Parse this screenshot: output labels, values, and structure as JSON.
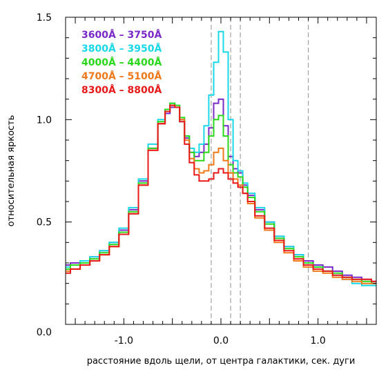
{
  "chart_data": {
    "type": "line",
    "xlabel": "расстояние вдоль щели, от центра галактики, сек. дуги",
    "ylabel": "относительная яркость",
    "xlim": [
      -1.6,
      1.6
    ],
    "ylim": [
      0.0,
      1.5
    ],
    "grid": false,
    "legend_position": "top-left",
    "x_ticks": [
      -1.0,
      0.0,
      1.0
    ],
    "x_tick_labels": [
      "-1.0",
      "0.0",
      "1.0"
    ],
    "y_ticks": [
      0.0,
      0.5,
      1.0,
      1.5
    ],
    "y_tick_labels": [
      "0.0",
      "0.5",
      "1.0",
      "1.5"
    ],
    "reference_lines_x": [
      -0.1,
      0.1,
      0.2,
      0.9
    ],
    "x": [
      -1.6,
      -1.5,
      -1.4,
      -1.3,
      -1.2,
      -1.1,
      -1.0,
      -0.9,
      -0.8,
      -0.7,
      -0.6,
      -0.55,
      -0.5,
      -0.45,
      -0.4,
      -0.35,
      -0.3,
      -0.25,
      -0.2,
      -0.15,
      -0.1,
      -0.05,
      0.0,
      0.05,
      0.1,
      0.15,
      0.2,
      0.25,
      0.3,
      0.4,
      0.5,
      0.6,
      0.7,
      0.8,
      0.9,
      1.0,
      1.1,
      1.2,
      1.3,
      1.4,
      1.5,
      1.6
    ],
    "series": [
      {
        "name": "3600Å – 3750Å",
        "color": "#7a28c8",
        "values": [
          0.29,
          0.3,
          0.31,
          0.33,
          0.36,
          0.4,
          0.46,
          0.56,
          0.7,
          0.86,
          0.98,
          1.03,
          1.06,
          1.06,
          1.0,
          0.91,
          0.84,
          0.82,
          0.84,
          0.88,
          0.96,
          1.08,
          1.1,
          0.97,
          0.82,
          0.76,
          0.74,
          0.68,
          0.63,
          0.56,
          0.5,
          0.43,
          0.38,
          0.34,
          0.31,
          0.29,
          0.28,
          0.26,
          0.24,
          0.23,
          0.22,
          0.21
        ]
      },
      {
        "name": "3800Å – 3950Å",
        "color": "#18d8e8",
        "values": [
          0.28,
          0.29,
          0.31,
          0.33,
          0.36,
          0.4,
          0.47,
          0.57,
          0.71,
          0.88,
          1.0,
          1.05,
          1.08,
          1.06,
          0.99,
          0.92,
          0.86,
          0.84,
          0.88,
          0.97,
          1.12,
          1.28,
          1.43,
          1.33,
          1.0,
          0.8,
          0.75,
          0.69,
          0.64,
          0.57,
          0.5,
          0.43,
          0.38,
          0.34,
          0.3,
          0.28,
          0.26,
          0.24,
          0.22,
          0.2,
          0.19,
          0.19
        ]
      },
      {
        "name": "4000Å – 4400Å",
        "color": "#28d818",
        "values": [
          0.27,
          0.29,
          0.3,
          0.32,
          0.35,
          0.39,
          0.45,
          0.55,
          0.69,
          0.86,
          0.99,
          1.05,
          1.08,
          1.07,
          1.01,
          0.92,
          0.84,
          0.8,
          0.8,
          0.84,
          0.92,
          1.0,
          1.02,
          0.92,
          0.78,
          0.74,
          0.72,
          0.67,
          0.62,
          0.55,
          0.49,
          0.42,
          0.37,
          0.33,
          0.3,
          0.28,
          0.26,
          0.25,
          0.23,
          0.22,
          0.21,
          0.2
        ]
      },
      {
        "name": "4700Å – 5100Å",
        "color": "#f07818",
        "values": [
          0.26,
          0.27,
          0.29,
          0.31,
          0.34,
          0.38,
          0.44,
          0.54,
          0.68,
          0.85,
          0.98,
          1.04,
          1.07,
          1.06,
          1.0,
          0.9,
          0.81,
          0.76,
          0.74,
          0.75,
          0.78,
          0.84,
          0.86,
          0.8,
          0.74,
          0.71,
          0.68,
          0.64,
          0.59,
          0.52,
          0.46,
          0.4,
          0.35,
          0.31,
          0.28,
          0.26,
          0.25,
          0.23,
          0.22,
          0.21,
          0.2,
          0.2
        ]
      },
      {
        "name": "8300Å – 8800Å",
        "color": "#e81818",
        "values": [
          0.25,
          0.27,
          0.29,
          0.31,
          0.34,
          0.38,
          0.44,
          0.54,
          0.68,
          0.85,
          0.98,
          1.04,
          1.07,
          1.06,
          0.99,
          0.88,
          0.79,
          0.73,
          0.7,
          0.7,
          0.71,
          0.74,
          0.76,
          0.74,
          0.71,
          0.69,
          0.67,
          0.64,
          0.6,
          0.53,
          0.47,
          0.41,
          0.36,
          0.32,
          0.29,
          0.27,
          0.26,
          0.24,
          0.23,
          0.22,
          0.22,
          0.21
        ]
      }
    ]
  }
}
